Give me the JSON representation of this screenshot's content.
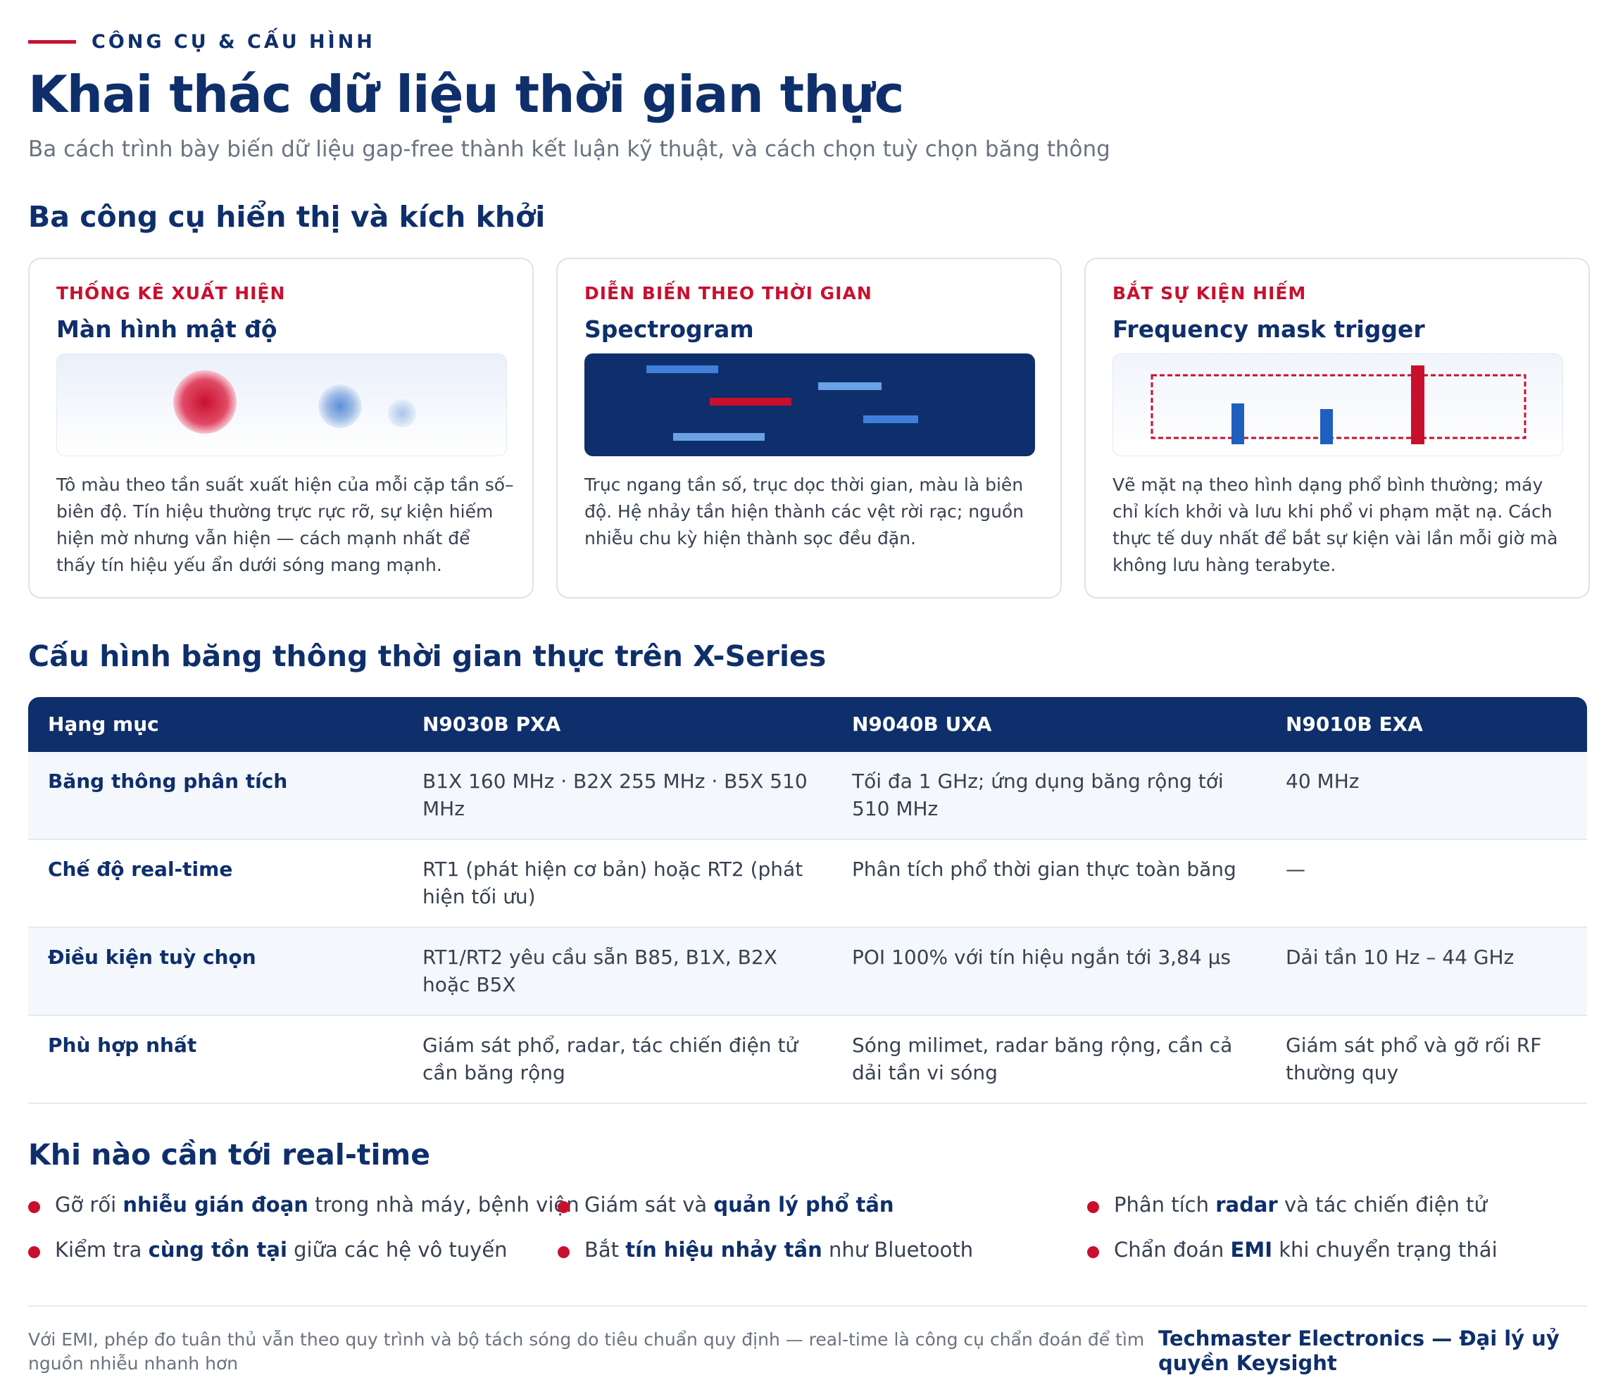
{
  "header": {
    "eyebrow": "CÔNG CỤ & CẤU HÌNH",
    "title": "Khai thác dữ liệu thời gian thực",
    "subtitle": "Ba cách trình bày biến dữ liệu gap-free thành kết luận kỹ thuật, và cách chọn tuỳ chọn băng thông"
  },
  "tools": {
    "heading": "Ba công cụ hiển thị và kích khởi",
    "cards": [
      {
        "kicker": "THỐNG KÊ XUẤT HIỆN",
        "title": "Màn hình mật độ",
        "desc": "Tô màu theo tần suất xuất hiện của mỗi cặp tần số–biên độ. Tín hiệu thường trực rực rỡ, sự kiện hiếm hiện mờ nhưng vẫn hiện — cách mạnh nhất để thấy tín hiệu yếu ẩn dưới sóng mang mạnh."
      },
      {
        "kicker": "DIỄN BIẾN THEO THỜI GIAN",
        "title": "Spectrogram",
        "desc": "Trục ngang tần số, trục dọc thời gian, màu là biên độ. Hệ nhảy tần hiện thành các vệt rời rạc; nguồn nhiễu chu kỳ hiện thành sọc đều đặn."
      },
      {
        "kicker": "BẮT SỰ KIỆN HIẾM",
        "title": "Frequency mask trigger",
        "desc": "Vẽ mặt nạ theo hình dạng phổ bình thường; máy chỉ kích khởi và lưu khi phổ vi phạm mặt nạ. Cách thực tế duy nhất để bắt sự kiện vài lần mỗi giờ mà không lưu hàng terabyte."
      }
    ]
  },
  "config": {
    "heading": "Cấu hình băng thông thời gian thực trên X-Series",
    "headers": [
      "Hạng mục",
      "N9030B PXA",
      "N9040B UXA",
      "N9010B EXA"
    ],
    "rows": [
      [
        "Băng thông phân tích",
        "B1X 160 MHz · B2X 255 MHz · B5X 510 MHz",
        "Tối đa 1 GHz; ứng dụng băng rộng tới 510 MHz",
        "40 MHz"
      ],
      [
        "Chế độ real-time",
        "RT1 (phát hiện cơ bản) hoặc RT2 (phát hiện tối ưu)",
        "Phân tích phổ thời gian thực toàn băng",
        "—"
      ],
      [
        "Điều kiện tuỳ chọn",
        "RT1/RT2 yêu cầu sẵn B85, B1X, B2X hoặc B5X",
        "POI 100% với tín hiệu ngắn tới 3,84 µs",
        "Dải tần 10 Hz – 44 GHz"
      ],
      [
        "Phù hợp nhất",
        "Giám sát phổ, radar, tác chiến điện tử cần băng rộng",
        "Sóng milimet, radar băng rộng, cần cả dải tần vi sóng",
        "Giám sát phổ và gỡ rối RF thường quy"
      ]
    ]
  },
  "when": {
    "heading": "Khi nào cần tới real-time",
    "items": [
      {
        "pre": "Gỡ rối ",
        "bold": "nhiễu gián đoạn",
        "post": " trong nhà máy, bệnh viện"
      },
      {
        "pre": "Giám sát và ",
        "bold": "quản lý phổ tần",
        "post": ""
      },
      {
        "pre": "Phân tích ",
        "bold": "radar",
        "post": " và tác chiến điện tử"
      },
      {
        "pre": "Kiểm tra ",
        "bold": "cùng tồn tại",
        "post": " giữa các hệ vô tuyến"
      },
      {
        "pre": "Bắt ",
        "bold": "tín hiệu nhảy tần",
        "post": " như Bluetooth"
      },
      {
        "pre": "Chẩn đoán ",
        "bold": "EMI",
        "post": " khi chuyển trạng thái"
      }
    ]
  },
  "footer": {
    "note": "Với EMI, phép đo tuân thủ vẫn theo quy trình và bộ tách sóng do tiêu chuẩn quy định — real-time là công cụ chẩn đoán để tìm nguồn nhiễu nhanh hơn",
    "brand": "Techmaster Electronics — Đại lý uỷ quyền Keysight"
  },
  "colors": {
    "navy": "#0e2f6b",
    "red": "#c8102e",
    "blue": "#1f5fbf",
    "light_blue": "#5b8fd9"
  }
}
